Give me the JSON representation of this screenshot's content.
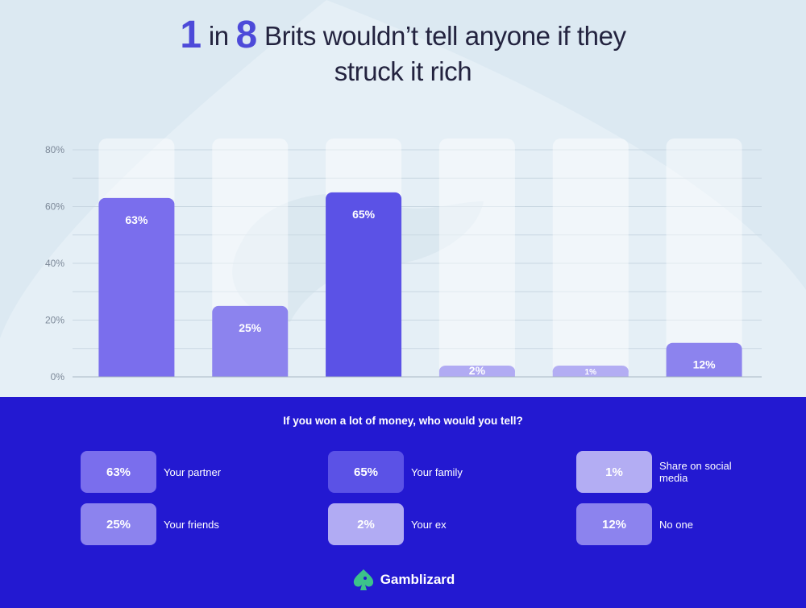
{
  "title": {
    "num1": "1",
    "word_in": "in",
    "num2": "8",
    "line1_rest": "Brits wouldn’t tell anyone if they",
    "line2": "struck it rich"
  },
  "question": "If you won a lot of money, who would you tell?",
  "chart_data": {
    "type": "bar",
    "categories": [
      "Your partner",
      "Your friends",
      "Your family",
      "Your ex",
      "Share on social media",
      "No one"
    ],
    "values": [
      63,
      25,
      65,
      2,
      1,
      12
    ],
    "data_labels": [
      "63%",
      "25%",
      "65%",
      "2%",
      "1%",
      "12%"
    ],
    "colors": [
      "#7a6eed",
      "#8c83ee",
      "#5b52e6",
      "#b1abf3",
      "#b3adf3",
      "#8c83ee"
    ],
    "yticks": [
      0,
      20,
      40,
      60,
      80
    ],
    "ytick_labels": [
      "0%",
      "20%",
      "40%",
      "60%",
      "80%"
    ],
    "ylim": [
      0,
      80
    ],
    "grid": true
  },
  "legend": [
    {
      "value": "63%",
      "label": "Your partner",
      "color": "#7a6eed"
    },
    {
      "value": "65%",
      "label": "Your family",
      "color": "#5b52e6"
    },
    {
      "value": "1%",
      "label": "Share on social media",
      "color": "#b3adf3"
    },
    {
      "value": "25%",
      "label": "Your friends",
      "color": "#8c83ee"
    },
    {
      "value": "2%",
      "label": "Your ex",
      "color": "#b1abf3"
    },
    {
      "value": "12%",
      "label": "No one",
      "color": "#8c83ee"
    }
  ],
  "brand": {
    "name": "Gamblizard",
    "logo_icon": "spade-lizard-icon",
    "logo_color": "#3cc28a"
  }
}
